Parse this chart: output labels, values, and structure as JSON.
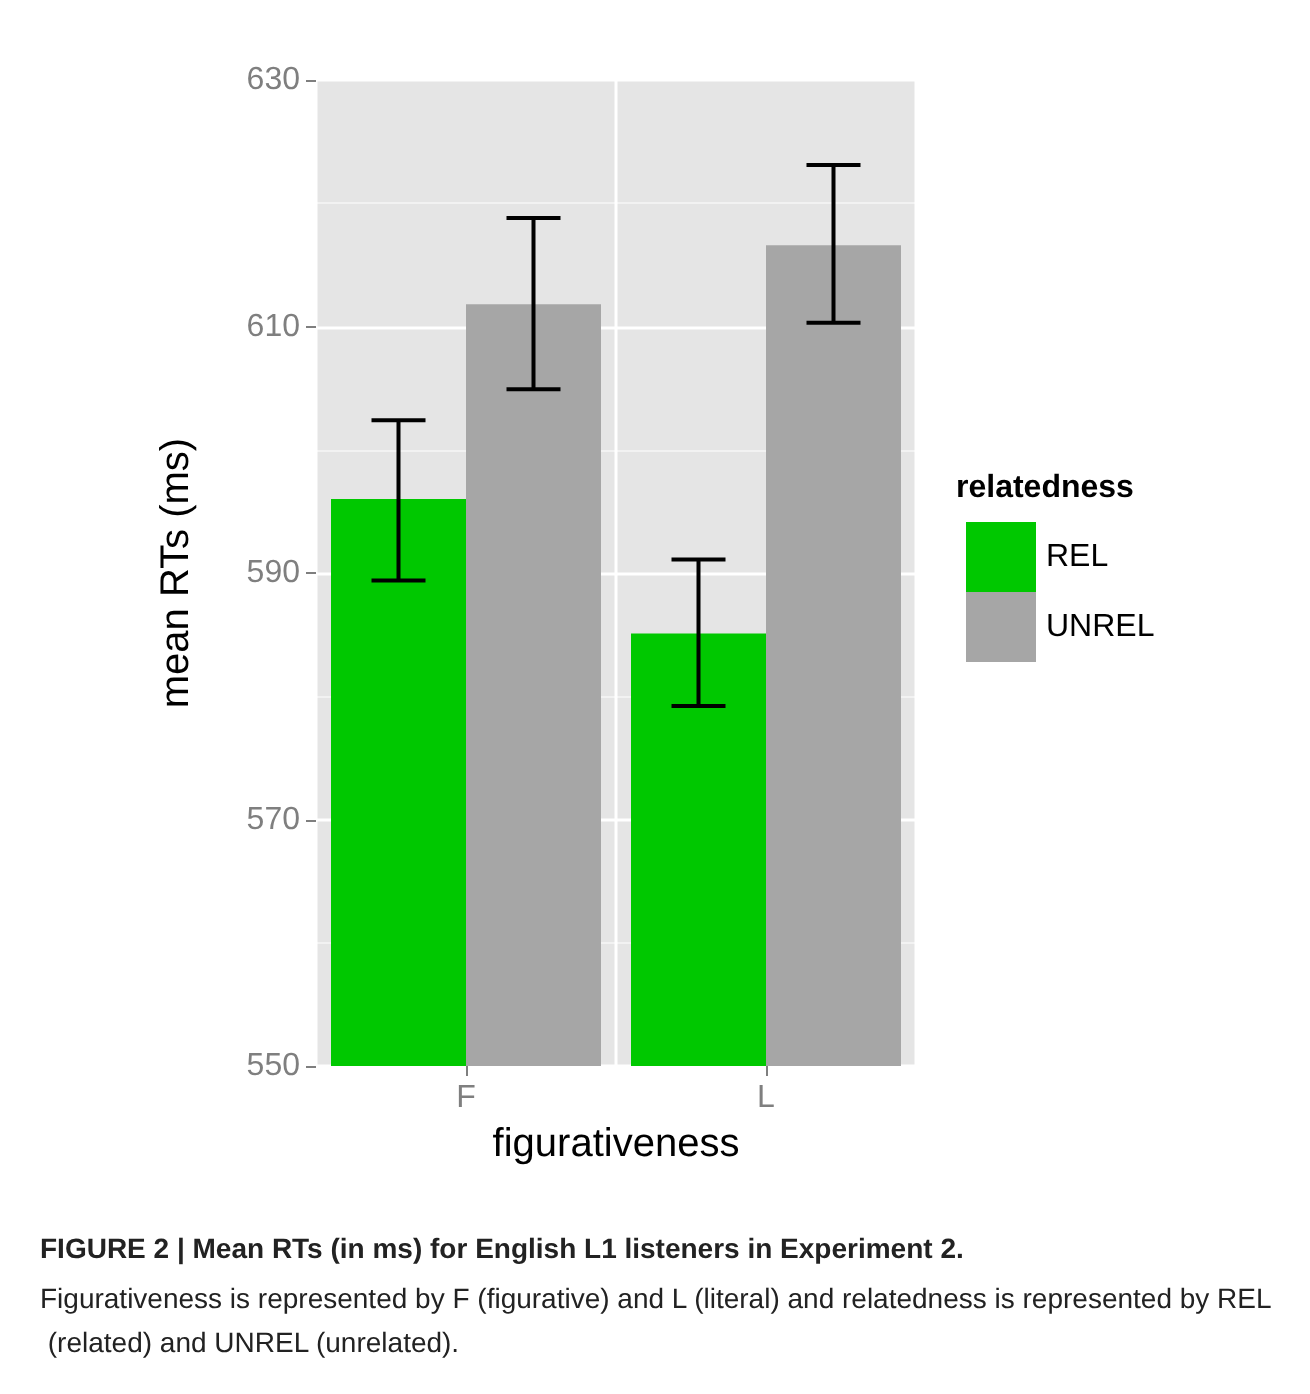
{
  "chart_data": {
    "type": "bar",
    "xlabel": "figurativeness",
    "ylabel": "mean RTs (ms)",
    "legend_title": "relatedness",
    "categories": [
      "F",
      "L"
    ],
    "series": [
      {
        "name": "REL",
        "color": "#00c800",
        "values": [
          596,
          585.1
        ],
        "errors": [
          [
            589.4,
            602.4
          ],
          [
            579.2,
            591.1
          ]
        ]
      },
      {
        "name": "UNREL",
        "color": "#a6a6a6",
        "values": [
          611.8,
          616.6
        ],
        "errors": [
          [
            604.9,
            618.8
          ],
          [
            610.3,
            623.1
          ]
        ]
      }
    ],
    "ylim": [
      550,
      630
    ],
    "yticks": [
      550,
      570,
      590,
      610,
      630
    ],
    "grid": true,
    "legend": "right",
    "annotations": [
      "FIGURE 2 | Mean RTs (in ms) for English L1 listeners in Experiment 2.",
      "Figurativeness is represented by F (figurative) and L (literal) and relatedness is represented by REL (related) and UNREL (unrelated)."
    ]
  }
}
